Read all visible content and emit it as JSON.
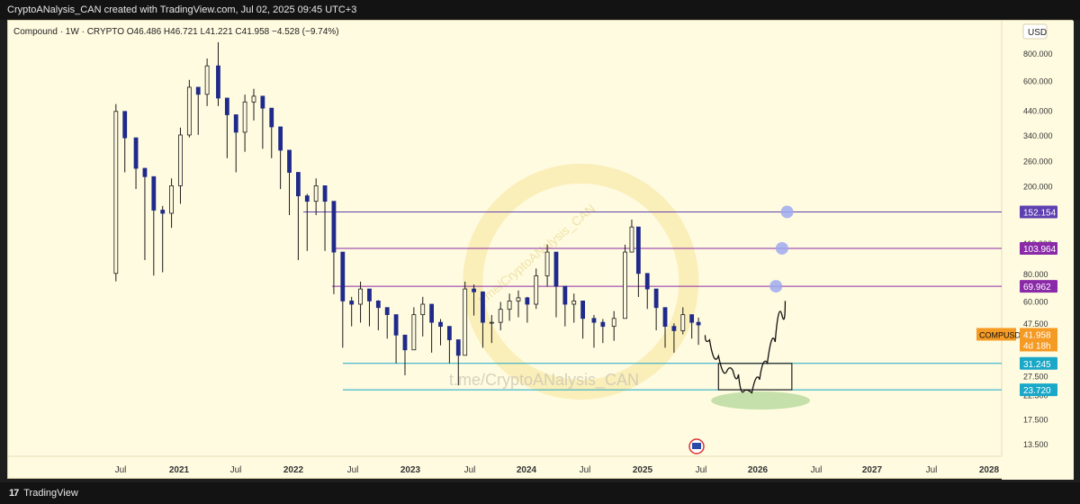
{
  "header": {
    "text": "CryptoANalysis_CAN created with TradingView.com, Jul 02, 2025 09:45 UTC+3"
  },
  "footer": {
    "logo": "17",
    "brand": "TradingView"
  },
  "chart_data": {
    "type": "candlestick",
    "legend": "Compound · 1W · CRYPTO  O46.486  H46.721  L41.221  C41.958  −4.528 (−9.74%)",
    "currency": "USD",
    "y_scale": "log",
    "y_ticks": [
      13.5,
      17.5,
      22.5,
      27.5,
      47.5,
      60,
      80,
      110,
      200,
      260,
      340,
      440,
      600,
      800
    ],
    "y_tick_labels": [
      "13.500",
      "17.500",
      "22.500",
      "27.500",
      "47.500",
      "60.000",
      "80.000",
      "110.000",
      "200.000",
      "260.000",
      "340.000",
      "440.000",
      "600.000",
      "800.000"
    ],
    "x_labels": [
      "Jul",
      "2021",
      "Jul",
      "2022",
      "Jul",
      "2023",
      "Jul",
      "2024",
      "Jul",
      "2025",
      "Jul",
      "2026",
      "Jul",
      "2027",
      "Jul",
      "2028"
    ],
    "price_lines": [
      {
        "label": "152.154",
        "value": 152.154,
        "color": "#5e3fb0"
      },
      {
        "label": "103.964",
        "value": 103.964,
        "color": "#8a2aa8"
      },
      {
        "label": "69.962",
        "value": 69.962,
        "color": "#8a2aa8"
      },
      {
        "label": "31.245",
        "value": 31.245,
        "color": "#1aa8c8"
      },
      {
        "label": "23.720",
        "value": 23.72,
        "color": "#1aa8c8"
      }
    ],
    "last_price": {
      "symbol": "COMPUSD",
      "value": "41.958",
      "countdown": "4d 18h",
      "color": "#f59a23"
    },
    "watermark": "t.me/CryptoANalysis_CAN",
    "logo_watermark": "t.me/CryptoANalysis_CAN",
    "candles": [
      [
        "2020-06-22",
        80,
        435
      ],
      [
        "2020-07-20",
        250,
        330
      ],
      [
        "2020-08-24",
        210,
        240
      ],
      [
        "2020-09-21",
        100,
        220
      ],
      [
        "2020-10-19",
        85,
        155
      ],
      [
        "2020-11-16",
        88,
        150
      ],
      [
        "2020-12-14",
        140,
        200
      ],
      [
        "2021-01-11",
        180,
        340
      ],
      [
        "2021-02-08",
        360,
        560
      ],
      [
        "2021-03-08",
        370,
        520
      ],
      [
        "2021-04-05",
        500,
        700
      ],
      [
        "2021-05-10",
        830,
        500
      ],
      [
        "2021-06-07",
        290,
        420
      ],
      [
        "2021-07-05",
        250,
        350
      ],
      [
        "2021-08-02",
        310,
        480
      ],
      [
        "2021-08-30",
        430,
        510
      ],
      [
        "2021-09-27",
        320,
        450
      ],
      [
        "2021-10-25",
        290,
        370
      ],
      [
        "2021-11-22",
        210,
        290
      ],
      [
        "2021-12-20",
        160,
        230
      ],
      [
        "2022-01-17",
        100,
        180
      ],
      [
        "2022-02-14",
        110,
        170
      ],
      [
        "2022-03-14",
        160,
        200
      ],
      [
        "2022-04-11",
        110,
        170
      ],
      [
        "2022-05-09",
        70,
        100
      ],
      [
        "2022-06-06",
        40,
        60
      ],
      [
        "2022-07-04",
        50,
        58
      ],
      [
        "2022-08-01",
        52,
        68
      ],
      [
        "2022-08-29",
        50,
        60
      ],
      [
        "2022-09-26",
        48,
        56
      ],
      [
        "2022-10-24",
        44,
        52
      ],
      [
        "2022-11-21",
        34,
        42
      ],
      [
        "2022-12-19",
        30,
        36
      ],
      [
        "2023-01-16",
        42,
        52
      ],
      [
        "2023-02-13",
        45,
        58
      ],
      [
        "2023-03-13",
        38,
        48
      ],
      [
        "2023-04-10",
        41,
        46
      ],
      [
        "2023-05-08",
        34,
        40
      ],
      [
        "2023-06-05",
        27,
        34
      ],
      [
        "2023-06-26",
        50,
        68
      ],
      [
        "2023-07-24",
        56,
        66
      ],
      [
        "2023-08-21",
        40,
        48
      ],
      [
        "2023-09-18",
        42,
        48
      ],
      [
        "2023-10-16",
        48,
        55
      ],
      [
        "2023-11-13",
        53,
        60
      ],
      [
        "2023-12-11",
        55,
        62
      ],
      [
        "2024-01-08",
        52,
        58
      ],
      [
        "2024-02-05",
        60,
        78
      ],
      [
        "2024-03-11",
        76,
        100
      ],
      [
        "2024-04-08",
        55,
        70
      ],
      [
        "2024-05-06",
        50,
        58
      ],
      [
        "2024-06-03",
        52,
        60
      ],
      [
        "2024-07-01",
        44,
        50
      ],
      [
        "2024-08-05",
        40,
        48
      ],
      [
        "2024-09-02",
        42,
        46
      ],
      [
        "2024-10-07",
        43,
        50
      ],
      [
        "2024-11-11",
        70,
        100
      ],
      [
        "2024-12-02",
        110,
        130
      ],
      [
        "2024-12-23",
        68,
        80
      ],
      [
        "2025-01-20",
        60,
        68
      ],
      [
        "2025-02-17",
        48,
        56
      ],
      [
        "2025-03-17",
        40,
        46
      ],
      [
        "2025-04-14",
        38,
        44
      ],
      [
        "2025-05-12",
        46,
        52
      ],
      [
        "2025-06-09",
        44,
        48
      ],
      [
        "2025-06-30",
        41.2,
        46.7
      ]
    ],
    "projection_path": [
      [
        "2025-07-21",
        42
      ],
      [
        "2025-08-18",
        38
      ],
      [
        "2025-09-15",
        30
      ],
      [
        "2025-10-06",
        27
      ],
      [
        "2025-10-27",
        31
      ],
      [
        "2025-11-10",
        25
      ],
      [
        "2025-12-01",
        22
      ],
      [
        "2025-12-29",
        24
      ],
      [
        "2026-01-19",
        29
      ],
      [
        "2026-02-16",
        34
      ],
      [
        "2026-03-09",
        45
      ],
      [
        "2026-03-30",
        60
      ]
    ],
    "targets": [
      69.962,
      103.964,
      152.154
    ],
    "zone": {
      "from": "2025-09-01",
      "to": "2026-04-20",
      "low": 23.72,
      "high": 31.245
    }
  }
}
